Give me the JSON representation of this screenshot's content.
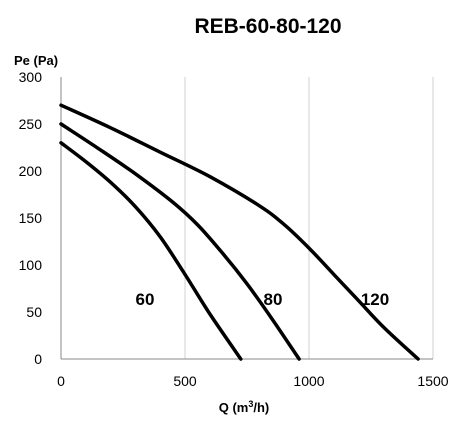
{
  "chart_data": {
    "type": "line",
    "title": "REB-60-80-120",
    "ylabel": "Pe (Pa)",
    "xlabel_main": "Q (m",
    "xlabel_sup": "3",
    "xlabel_end": "/h)",
    "xlim": [
      0,
      1500
    ],
    "ylim": [
      0,
      300
    ],
    "x_ticks": [
      "0",
      "500",
      "1000",
      "1500"
    ],
    "y_ticks": [
      "0",
      "50",
      "100",
      "150",
      "200",
      "250",
      "300"
    ],
    "grid": "vertical",
    "series": [
      {
        "name": "60",
        "points": [
          [
            0,
            230
          ],
          [
            100,
            210
          ],
          [
            200,
            188
          ],
          [
            300,
            162
          ],
          [
            400,
            130
          ],
          [
            500,
            90
          ],
          [
            600,
            48
          ],
          [
            725,
            0
          ]
        ]
      },
      {
        "name": "80",
        "points": [
          [
            0,
            250
          ],
          [
            150,
            224
          ],
          [
            300,
            197
          ],
          [
            450,
            167
          ],
          [
            550,
            143
          ],
          [
            650,
            113
          ],
          [
            750,
            80
          ],
          [
            850,
            43
          ],
          [
            960,
            0
          ]
        ]
      },
      {
        "name": "120",
        "points": [
          [
            0,
            270
          ],
          [
            200,
            246
          ],
          [
            400,
            220
          ],
          [
            600,
            194
          ],
          [
            800,
            163
          ],
          [
            900,
            143
          ],
          [
            1000,
            118
          ],
          [
            1100,
            90
          ],
          [
            1200,
            62
          ],
          [
            1300,
            34
          ],
          [
            1440,
            0
          ]
        ]
      }
    ]
  }
}
